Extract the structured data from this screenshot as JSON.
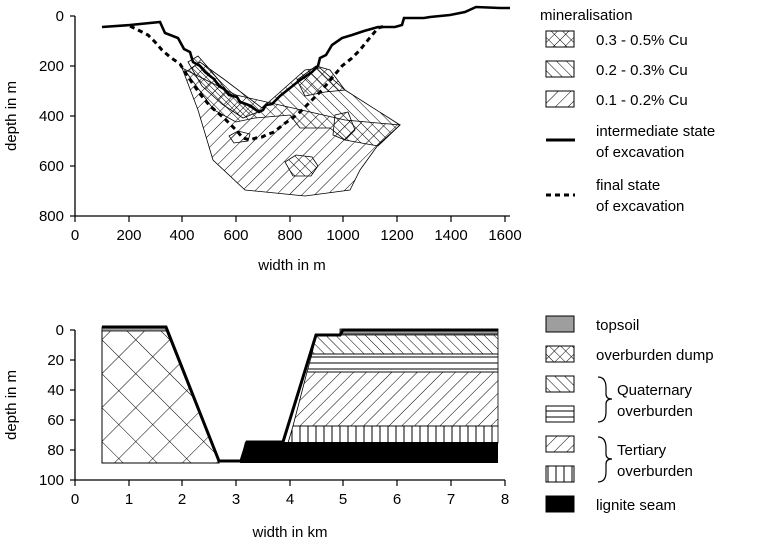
{
  "top": {
    "ylabel": "depth in m",
    "xlabel": "width in m",
    "yticks": [
      "0",
      "200",
      "400",
      "600",
      "800"
    ],
    "xticks": [
      "0",
      "200",
      "400",
      "600",
      "800",
      "1000",
      "1200",
      "1400",
      "1600"
    ],
    "legend": {
      "title": "mineralisation",
      "items": [
        "0.3 - 0.5% Cu",
        "0.2 - 0.3% Cu",
        "0.1 - 0.2% Cu"
      ],
      "intermediate_line1": "intermediate state",
      "intermediate_line2": "of excavation",
      "final_line1": "final state",
      "final_line2": "of excavation"
    }
  },
  "bottom": {
    "ylabel": "depth in m",
    "xlabel": "width in km",
    "yticks": [
      "0",
      "20",
      "40",
      "60",
      "80",
      "100"
    ],
    "xticks": [
      "0",
      "1",
      "2",
      "3",
      "4",
      "5",
      "6",
      "7",
      "8"
    ],
    "legend": {
      "topsoil": "topsoil",
      "overburden_dump": "overburden dump",
      "quaternary_line1": "Quaternary",
      "quaternary_line2": "overburden",
      "tertiary_line1": "Tertiary",
      "tertiary_line2": "overburden",
      "lignite": "lignite seam"
    }
  }
}
